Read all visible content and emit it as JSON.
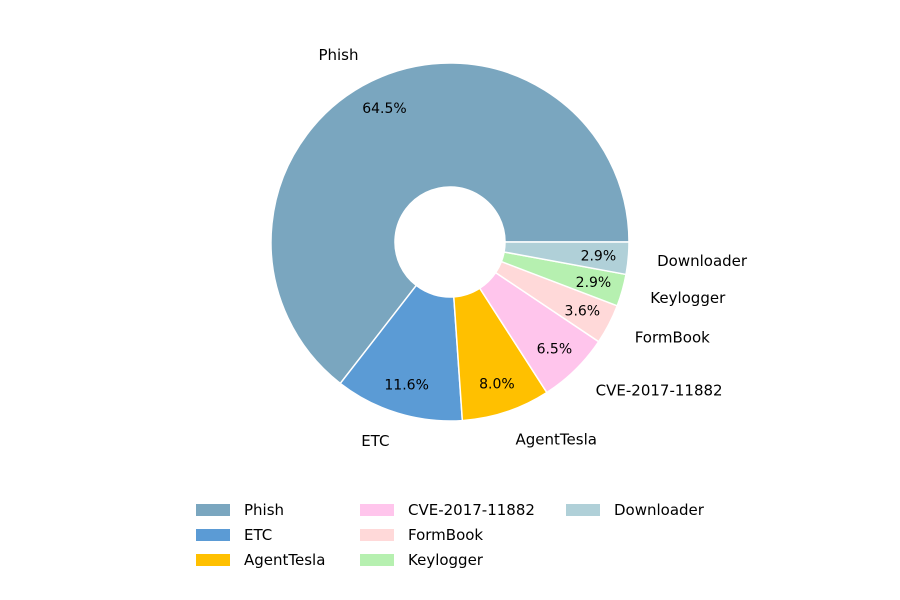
{
  "chart_data": {
    "type": "pie",
    "donut": true,
    "categories": [
      "Phish",
      "ETC",
      "AgentTesla",
      "CVE-2017-11882",
      "FormBook",
      "Keylogger",
      "Downloader"
    ],
    "values": [
      64.5,
      11.6,
      8.0,
      6.5,
      3.6,
      2.9,
      2.9
    ],
    "value_labels": [
      "64.5%",
      "11.6%",
      "8.0%",
      "6.5%",
      "3.6%",
      "2.9%",
      "2.9%"
    ],
    "colors": [
      "#7aa6bf",
      "#5b9bd5",
      "#ffc000",
      "#ffc5ec",
      "#ffd9d9",
      "#b6f0b0",
      "#b0d0d8"
    ],
    "start_position": "3 o'clock",
    "direction": "counter-clockwise",
    "legend": {
      "placement": "bottom",
      "columns": 3,
      "items": [
        "Phish",
        "ETC",
        "AgentTesla",
        "CVE-2017-11882",
        "FormBook",
        "Keylogger",
        "Downloader"
      ]
    }
  }
}
